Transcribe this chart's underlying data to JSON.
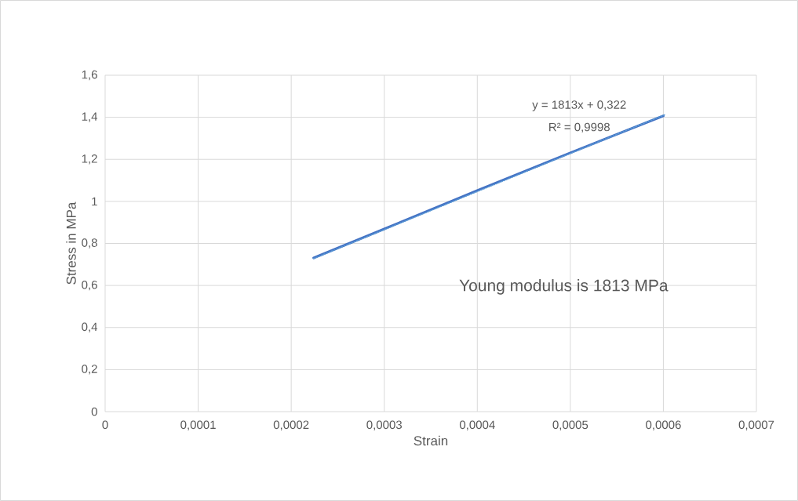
{
  "chart_data": {
    "type": "line",
    "xlabel": "Strain",
    "ylabel": "Stress in MPa",
    "series": [
      {
        "x": [
          0.000224,
          0.0003,
          0.0004,
          0.0005,
          0.0006
        ],
        "values": [
          0.731,
          0.869,
          1.052,
          1.231,
          1.407
        ],
        "color": "#4472c4",
        "line_style": "solid"
      },
      {
        "type": "line",
        "x": [
          0.000224,
          0.000602
        ],
        "values": [
          0.728,
          1.413
        ],
        "color": "#5b9bd5",
        "line_style": "dotted"
      }
    ],
    "xlim": [
      0,
      0.0007
    ],
    "ylim": [
      0,
      1.6
    ],
    "xticks": [
      0,
      {
        "value": 0.0001,
        "label": "0,0001"
      },
      {
        "value": 0.0002,
        "label": "0,0002"
      },
      {
        "value": 0.0003,
        "label": "0,0003"
      },
      {
        "value": 0.0004,
        "label": "0,0004"
      },
      {
        "value": 0.0005,
        "label": "0,0005"
      },
      {
        "value": 0.0006,
        "label": "0,0006"
      },
      {
        "value": 0.0007,
        "label": "0,0007"
      }
    ],
    "yticks": [
      0,
      {
        "value": 0.2,
        "label": "0,2"
      },
      {
        "value": 0.4,
        "label": "0,4"
      },
      {
        "value": 0.6,
        "label": "0,6"
      },
      {
        "value": 0.8,
        "label": "0,8"
      },
      1,
      {
        "value": 1.2,
        "label": "1,2"
      },
      {
        "value": 1.4,
        "label": "1,4"
      },
      {
        "value": 1.6,
        "label": "1,6"
      }
    ],
    "grid": true,
    "marker": "none",
    "annotations": [
      "y = 1813x + 0,322",
      "R² = 0,9998",
      "Young modulus is 1813 MPa"
    ]
  }
}
